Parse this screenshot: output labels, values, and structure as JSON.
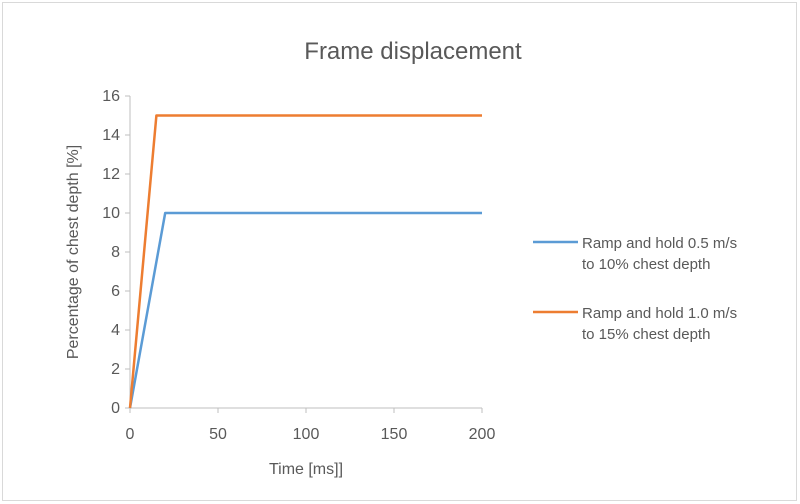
{
  "chart_data": {
    "type": "line",
    "title": "Frame displacement",
    "xlabel": "Time [ms]]",
    "ylabel": "Percentage of chest depth [%]",
    "xlim": [
      0,
      200
    ],
    "ylim": [
      0,
      16
    ],
    "xticks": [
      0,
      50,
      100,
      150,
      200
    ],
    "yticks": [
      0,
      2,
      4,
      6,
      8,
      10,
      12,
      14,
      16
    ],
    "grid": false,
    "legend_position": "right",
    "series": [
      {
        "name_lines": [
          "Ramp and hold 0.5 m/s",
          "to 10% chest depth"
        ],
        "color": "#5b9bd5",
        "x": [
          0,
          20,
          200
        ],
        "y": [
          0,
          10,
          10
        ]
      },
      {
        "name_lines": [
          "Ramp and hold 1.0 m/s",
          "to 15% chest depth"
        ],
        "color": "#ed7d31",
        "x": [
          0,
          15,
          200
        ],
        "y": [
          0,
          15,
          15
        ]
      }
    ]
  }
}
